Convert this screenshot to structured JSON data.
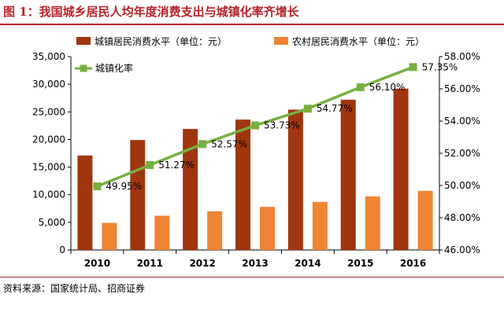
{
  "figure": {
    "title": "图 1：我国城乡居民人均年度消费支出与城镇化率齐增长",
    "source": "资料来源：国家统计局、招商证券"
  },
  "colors": {
    "title": "#b3242b",
    "urban_bar": "#a0360f",
    "rural_bar": "#ee8434",
    "rate_line": "#76b041"
  },
  "chart_data": {
    "type": "bar",
    "categories": [
      "2010",
      "2011",
      "2012",
      "2013",
      "2014",
      "2015",
      "2016"
    ],
    "series": [
      {
        "name": "城镇居民消费水平（单位：元）",
        "kind": "bar",
        "axis": "left",
        "values": [
          17100,
          19900,
          21900,
          23600,
          25400,
          27200,
          29200
        ]
      },
      {
        "name": "农村居民消费水平（单位：元）",
        "kind": "bar",
        "axis": "left",
        "values": [
          4900,
          6200,
          7000,
          7800,
          8700,
          9700,
          10700
        ]
      },
      {
        "name": "城镇化率",
        "kind": "line",
        "axis": "right",
        "values": [
          49.95,
          51.27,
          52.57,
          53.73,
          54.77,
          56.1,
          57.35
        ],
        "labels": [
          "49.95%",
          "51.27%",
          "52.57%",
          "53.73%",
          "54.77%",
          "56.10%",
          "57.35%"
        ]
      }
    ],
    "y_left": {
      "min": 0,
      "max": 35000,
      "step": 5000,
      "ticks": [
        "0",
        "5,000",
        "10,000",
        "15,000",
        "20,000",
        "25,000",
        "30,000",
        "35,000"
      ]
    },
    "y_right": {
      "min": 46,
      "max": 58,
      "step": 2,
      "ticks": [
        "46.00%",
        "48.00%",
        "50.00%",
        "52.00%",
        "54.00%",
        "56.00%",
        "58.00%"
      ]
    },
    "grid": false,
    "legend": "top"
  }
}
